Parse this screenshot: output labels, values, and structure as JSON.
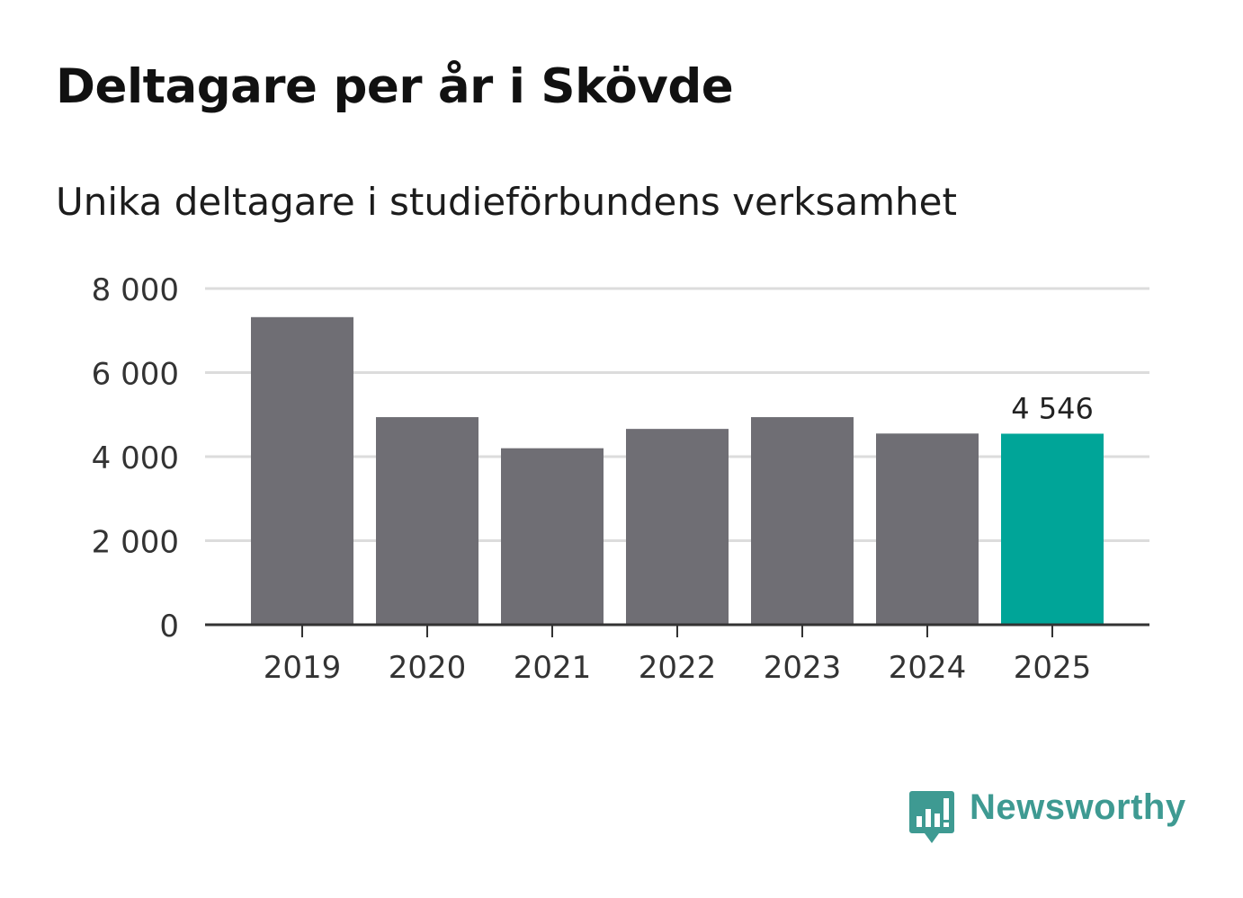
{
  "title": "Deltagare per år i Skövde",
  "subtitle": "Unika deltagare i studieförbundens verksamhet",
  "brand": {
    "name": "Newsworthy",
    "icon": "newsworthy-logo-icon"
  },
  "colors": {
    "bar": "#6f6e74",
    "highlight": "#00a598",
    "grid": "#dcdcdc",
    "axis": "#333333",
    "brand": "#3e9a92"
  },
  "chart_data": {
    "type": "bar",
    "categories": [
      "2019",
      "2020",
      "2021",
      "2022",
      "2023",
      "2024",
      "2025"
    ],
    "values": [
      7320,
      4940,
      4200,
      4660,
      4940,
      4550,
      4546
    ],
    "highlight_index": 6,
    "data_labels": [
      {
        "index": 6,
        "text": "4 546"
      }
    ],
    "ylim": [
      0,
      8000
    ],
    "yticks": [
      0,
      2000,
      4000,
      6000,
      8000
    ],
    "ytick_labels": [
      "0",
      "2 000",
      "4 000",
      "6 000",
      "8 000"
    ],
    "title": "Deltagare per år i Skövde",
    "subtitle": "Unika deltagare i studieförbundens verksamhet",
    "xlabel": "",
    "ylabel": "",
    "grid": true
  }
}
